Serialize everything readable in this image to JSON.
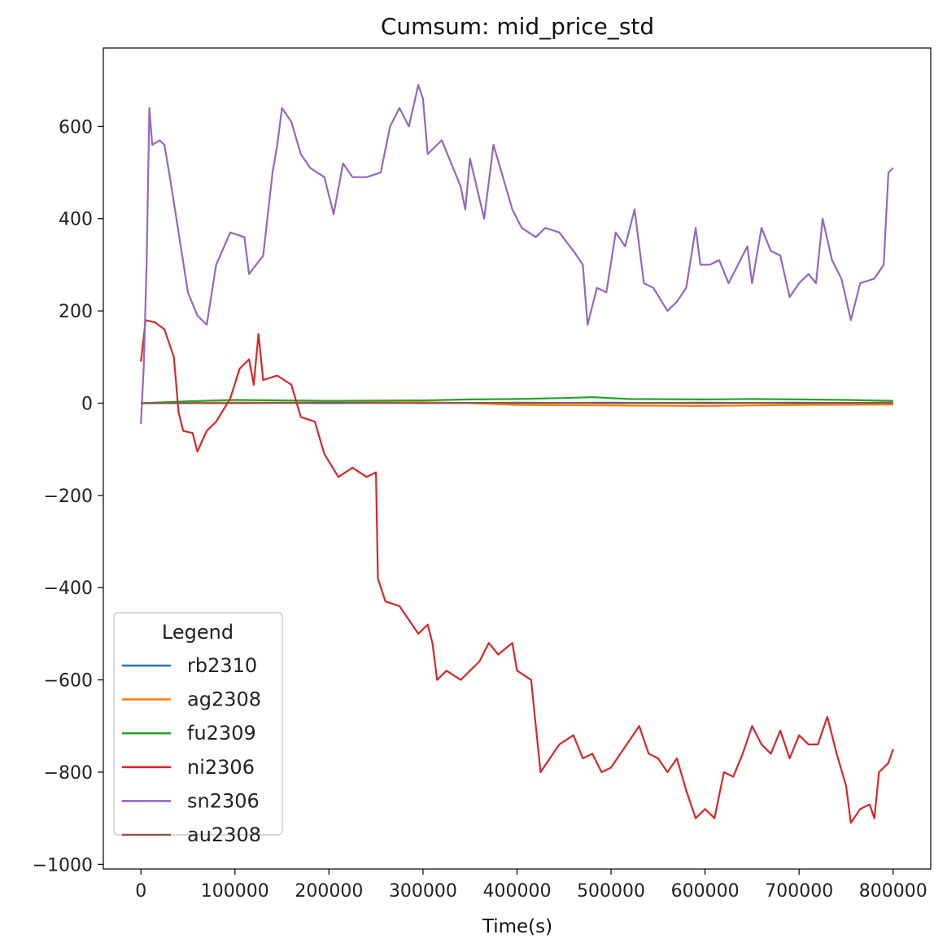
{
  "chart_data": {
    "type": "line",
    "title": "Cumsum: mid_price_std",
    "xlabel": "Time(s)",
    "ylabel": "",
    "xlim": [
      -40000,
      840000
    ],
    "ylim": [
      -1010,
      770
    ],
    "xticks": [
      0,
      100000,
      200000,
      300000,
      400000,
      500000,
      600000,
      700000,
      800000
    ],
    "yticks": [
      -1000,
      -800,
      -600,
      -400,
      -200,
      0,
      200,
      400,
      600
    ],
    "ytick_labels": [
      "−1000",
      "−800",
      "−600",
      "−400",
      "−200",
      "0",
      "200",
      "400",
      "600"
    ],
    "grid": false,
    "legend": {
      "title": "Legend",
      "location": "lower-left"
    },
    "series": [
      {
        "name": "rb2310",
        "color": "#1f77b4",
        "points": [
          [
            0,
            0
          ],
          [
            100000,
            1
          ],
          [
            200000,
            0
          ],
          [
            300000,
            1
          ],
          [
            400000,
            0
          ],
          [
            500000,
            1
          ],
          [
            600000,
            0
          ],
          [
            700000,
            1
          ],
          [
            800000,
            0
          ]
        ]
      },
      {
        "name": "ag2308",
        "color": "#ff7f0e",
        "points": [
          [
            0,
            0
          ],
          [
            100000,
            1
          ],
          [
            200000,
            1
          ],
          [
            300000,
            2
          ],
          [
            350000,
            0
          ],
          [
            400000,
            -4
          ],
          [
            500000,
            -5
          ],
          [
            600000,
            -6
          ],
          [
            700000,
            -4
          ],
          [
            800000,
            -3
          ]
        ]
      },
      {
        "name": "fu2309",
        "color": "#2ca02c",
        "points": [
          [
            0,
            0
          ],
          [
            50000,
            4
          ],
          [
            100000,
            7
          ],
          [
            150000,
            6
          ],
          [
            200000,
            5
          ],
          [
            300000,
            6
          ],
          [
            350000,
            8
          ],
          [
            400000,
            9
          ],
          [
            450000,
            11
          ],
          [
            480000,
            13
          ],
          [
            520000,
            9
          ],
          [
            600000,
            8
          ],
          [
            650000,
            9
          ],
          [
            700000,
            8
          ],
          [
            750000,
            7
          ],
          [
            800000,
            5
          ]
        ]
      },
      {
        "name": "ni2306",
        "color": "#d62728",
        "points": [
          [
            0,
            90
          ],
          [
            5000,
            180
          ],
          [
            15000,
            175
          ],
          [
            25000,
            160
          ],
          [
            35000,
            100
          ],
          [
            40000,
            -20
          ],
          [
            45000,
            -60
          ],
          [
            55000,
            -65
          ],
          [
            60000,
            -105
          ],
          [
            70000,
            -60
          ],
          [
            80000,
            -40
          ],
          [
            95000,
            10
          ],
          [
            105000,
            75
          ],
          [
            115000,
            95
          ],
          [
            120000,
            40
          ],
          [
            125000,
            150
          ],
          [
            130000,
            50
          ],
          [
            145000,
            60
          ],
          [
            160000,
            40
          ],
          [
            170000,
            -30
          ],
          [
            185000,
            -40
          ],
          [
            195000,
            -110
          ],
          [
            210000,
            -160
          ],
          [
            225000,
            -140
          ],
          [
            240000,
            -160
          ],
          [
            250000,
            -150
          ],
          [
            252000,
            -380
          ],
          [
            260000,
            -430
          ],
          [
            275000,
            -440
          ],
          [
            285000,
            -470
          ],
          [
            295000,
            -500
          ],
          [
            305000,
            -480
          ],
          [
            310000,
            -520
          ],
          [
            315000,
            -600
          ],
          [
            325000,
            -580
          ],
          [
            340000,
            -600
          ],
          [
            350000,
            -580
          ],
          [
            360000,
            -560
          ],
          [
            370000,
            -520
          ],
          [
            380000,
            -545
          ],
          [
            395000,
            -520
          ],
          [
            400000,
            -580
          ],
          [
            415000,
            -600
          ],
          [
            420000,
            -700
          ],
          [
            425000,
            -800
          ],
          [
            435000,
            -770
          ],
          [
            445000,
            -740
          ],
          [
            460000,
            -720
          ],
          [
            470000,
            -770
          ],
          [
            480000,
            -760
          ],
          [
            490000,
            -800
          ],
          [
            500000,
            -790
          ],
          [
            510000,
            -760
          ],
          [
            520000,
            -730
          ],
          [
            530000,
            -700
          ],
          [
            540000,
            -760
          ],
          [
            550000,
            -770
          ],
          [
            560000,
            -800
          ],
          [
            570000,
            -770
          ],
          [
            580000,
            -840
          ],
          [
            590000,
            -900
          ],
          [
            600000,
            -880
          ],
          [
            610000,
            -900
          ],
          [
            620000,
            -800
          ],
          [
            630000,
            -810
          ],
          [
            640000,
            -760
          ],
          [
            650000,
            -700
          ],
          [
            660000,
            -740
          ],
          [
            670000,
            -760
          ],
          [
            680000,
            -710
          ],
          [
            690000,
            -770
          ],
          [
            700000,
            -720
          ],
          [
            710000,
            -740
          ],
          [
            720000,
            -740
          ],
          [
            730000,
            -680
          ],
          [
            740000,
            -760
          ],
          [
            750000,
            -830
          ],
          [
            755000,
            -910
          ],
          [
            765000,
            -880
          ],
          [
            775000,
            -870
          ],
          [
            780000,
            -900
          ],
          [
            785000,
            -800
          ],
          [
            795000,
            -780
          ],
          [
            800000,
            -750
          ]
        ]
      },
      {
        "name": "sn2306",
        "color": "#9467bd",
        "points": [
          [
            0,
            -45
          ],
          [
            3000,
            80
          ],
          [
            6000,
            300
          ],
          [
            9000,
            640
          ],
          [
            12000,
            560
          ],
          [
            20000,
            570
          ],
          [
            25000,
            560
          ],
          [
            30000,
            500
          ],
          [
            40000,
            370
          ],
          [
            50000,
            240
          ],
          [
            60000,
            190
          ],
          [
            70000,
            170
          ],
          [
            80000,
            300
          ],
          [
            95000,
            370
          ],
          [
            110000,
            360
          ],
          [
            115000,
            280
          ],
          [
            130000,
            320
          ],
          [
            140000,
            500
          ],
          [
            145000,
            560
          ],
          [
            150000,
            640
          ],
          [
            160000,
            610
          ],
          [
            170000,
            540
          ],
          [
            180000,
            510
          ],
          [
            195000,
            490
          ],
          [
            205000,
            410
          ],
          [
            215000,
            520
          ],
          [
            225000,
            490
          ],
          [
            240000,
            490
          ],
          [
            255000,
            500
          ],
          [
            265000,
            600
          ],
          [
            275000,
            640
          ],
          [
            285000,
            600
          ],
          [
            295000,
            690
          ],
          [
            300000,
            660
          ],
          [
            305000,
            540
          ],
          [
            320000,
            570
          ],
          [
            330000,
            520
          ],
          [
            340000,
            470
          ],
          [
            345000,
            420
          ],
          [
            350000,
            530
          ],
          [
            365000,
            400
          ],
          [
            375000,
            560
          ],
          [
            385000,
            490
          ],
          [
            395000,
            420
          ],
          [
            405000,
            380
          ],
          [
            420000,
            360
          ],
          [
            430000,
            380
          ],
          [
            445000,
            370
          ],
          [
            460000,
            330
          ],
          [
            470000,
            300
          ],
          [
            475000,
            170
          ],
          [
            485000,
            250
          ],
          [
            495000,
            240
          ],
          [
            505000,
            370
          ],
          [
            515000,
            340
          ],
          [
            525000,
            420
          ],
          [
            535000,
            260
          ],
          [
            545000,
            250
          ],
          [
            560000,
            200
          ],
          [
            570000,
            220
          ],
          [
            580000,
            250
          ],
          [
            590000,
            380
          ],
          [
            595000,
            300
          ],
          [
            605000,
            300
          ],
          [
            615000,
            310
          ],
          [
            625000,
            260
          ],
          [
            635000,
            300
          ],
          [
            645000,
            340
          ],
          [
            650000,
            260
          ],
          [
            660000,
            380
          ],
          [
            670000,
            330
          ],
          [
            680000,
            320
          ],
          [
            690000,
            230
          ],
          [
            700000,
            260
          ],
          [
            710000,
            280
          ],
          [
            718000,
            260
          ],
          [
            725000,
            400
          ],
          [
            735000,
            310
          ],
          [
            745000,
            270
          ],
          [
            755000,
            180
          ],
          [
            765000,
            260
          ],
          [
            780000,
            270
          ],
          [
            790000,
            300
          ],
          [
            795000,
            500
          ],
          [
            800000,
            510
          ]
        ]
      },
      {
        "name": "au2308",
        "color": "#8c564b",
        "points": [
          [
            0,
            0
          ],
          [
            100000,
            0
          ],
          [
            200000,
            1
          ],
          [
            300000,
            0
          ],
          [
            400000,
            1
          ],
          [
            500000,
            0
          ],
          [
            600000,
            1
          ],
          [
            700000,
            0
          ],
          [
            800000,
            1
          ]
        ]
      }
    ]
  }
}
